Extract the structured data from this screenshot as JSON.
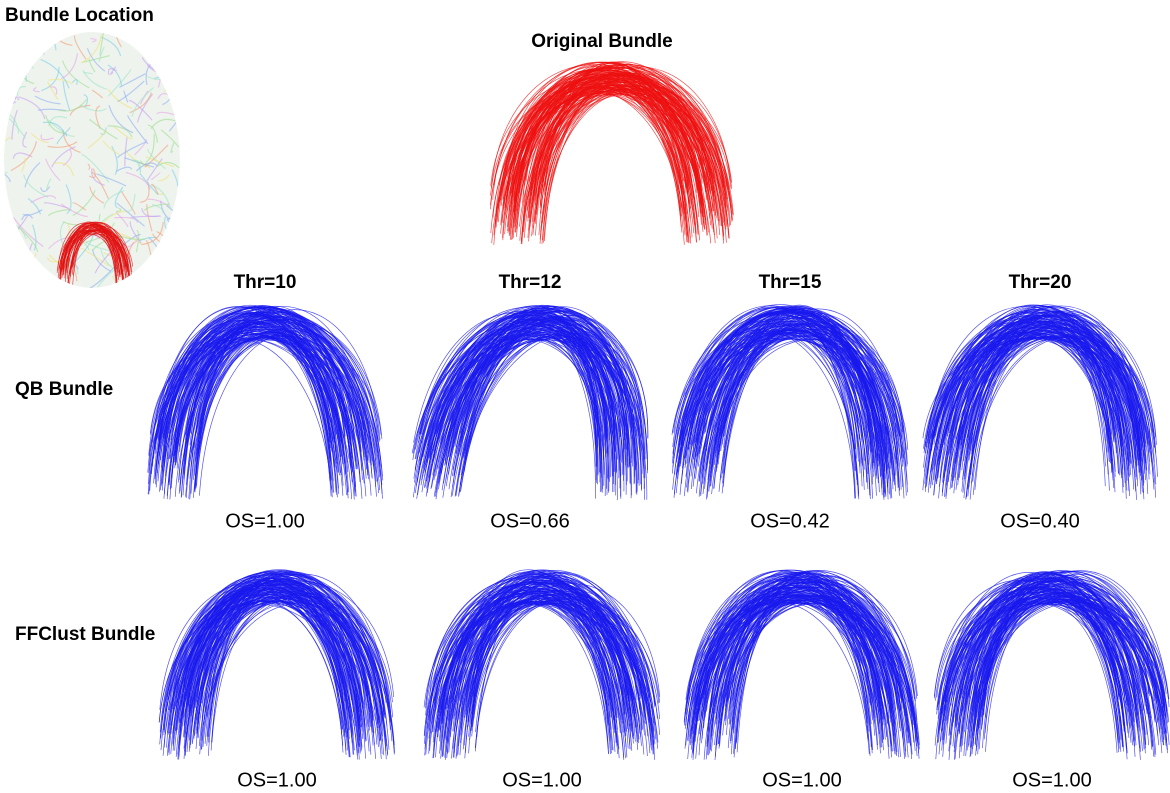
{
  "figure": {
    "location_title": "Bundle Location",
    "original_title": "Original Bundle",
    "columns": [
      "Thr=10",
      "Thr=12",
      "Thr=15",
      "Thr=20"
    ],
    "rows": [
      {
        "label": "QB Bundle",
        "scores": [
          "OS=1.00",
          "OS=0.66",
          "OS=0.42",
          "OS=0.40"
        ]
      },
      {
        "label": "FFClust Bundle",
        "scores": [
          "OS=1.00",
          "OS=1.00",
          "OS=1.00",
          "OS=1.00"
        ]
      }
    ]
  }
}
